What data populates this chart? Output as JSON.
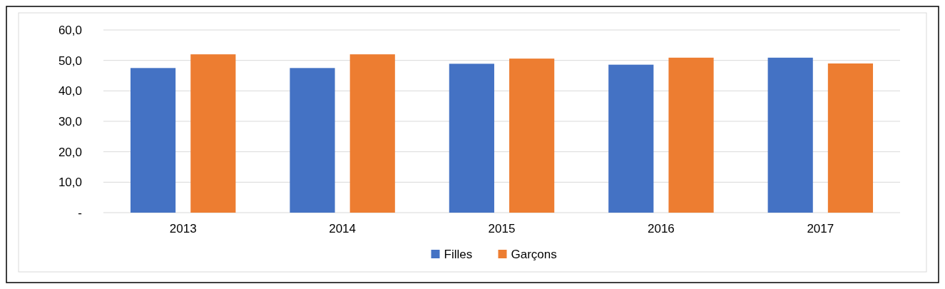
{
  "chart_data": {
    "type": "bar",
    "categories": [
      "2013",
      "2014",
      "2015",
      "2016",
      "2017"
    ],
    "series": [
      {
        "name": "Filles",
        "color": "#4472c4",
        "values": [
          47.5,
          47.5,
          48.9,
          48.6,
          50.9
        ]
      },
      {
        "name": "Garçons",
        "color": "#ed7d31",
        "values": [
          52.0,
          52.0,
          50.6,
          50.9,
          49.0
        ]
      }
    ],
    "ylim": [
      0,
      60
    ],
    "yticks": [
      {
        "value": 0,
        "label": "-"
      },
      {
        "value": 10,
        "label": "10,0"
      },
      {
        "value": 20,
        "label": "20,0"
      },
      {
        "value": 30,
        "label": "30,0"
      },
      {
        "value": 40,
        "label": "40,0"
      },
      {
        "value": 50,
        "label": "50,0"
      },
      {
        "value": 60,
        "label": "60,0"
      }
    ],
    "grid": "y",
    "legend": "bottom"
  }
}
